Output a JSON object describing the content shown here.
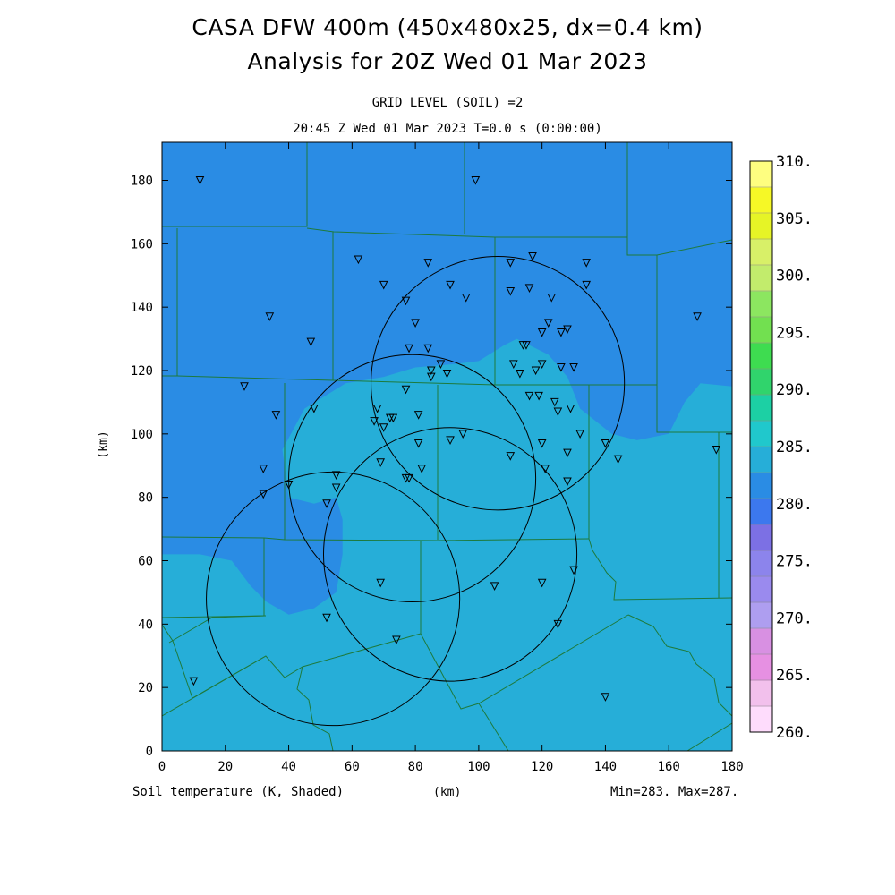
{
  "header": {
    "title_line1": "CASA DFW 400m (450x480x25, dx=0.4 km)",
    "title_line2": "Analysis for 20Z Wed 01 Mar 2023",
    "grid_level": "GRID LEVEL (SOIL) =2",
    "valid_time": "20:45 Z Wed 01 Mar 2023   T=0.0 s (0:00:00)"
  },
  "footer": {
    "field_label": "Soil temperature (K, Shaded)",
    "x_unit": "(km)",
    "min_max": "Min=283. Max=287."
  },
  "axes": {
    "xlabel": "(km)",
    "ylabel": "(km)",
    "x_ticks": [
      "0",
      "20",
      "40",
      "60",
      "80",
      "100",
      "120",
      "140",
      "160",
      "180"
    ],
    "y_ticks": [
      "0",
      "20",
      "40",
      "60",
      "80",
      "100",
      "120",
      "140",
      "160",
      "180"
    ]
  },
  "colorbar": {
    "labels": [
      "260.",
      "265.",
      "270.",
      "275.",
      "280.",
      "285.",
      "290.",
      "295.",
      "300.",
      "305.",
      "310."
    ],
    "colors": [
      "#fedcfc",
      "#f2c0ec",
      "#e690e2",
      "#d890e2",
      "#ae9ef0",
      "#9a8aee",
      "#8c84ec",
      "#7c70e4",
      "#3c78ee",
      "#2a8ce4",
      "#26aed8",
      "#20c8cc",
      "#1cd0a4",
      "#30d46c",
      "#3edc50",
      "#72e050",
      "#8ce660",
      "#c2ec6c",
      "#d8f068",
      "#e6f426",
      "#f6f826",
      "#fefe80"
    ]
  },
  "map": {
    "extent_km": {
      "x": [
        0,
        180
      ],
      "y": [
        0,
        192
      ]
    },
    "colors": {
      "cold": "#2a8ce4",
      "warm": "#26aed8",
      "county": "#1e7a3c"
    },
    "shaded_field_regions": [
      {
        "level": "285-287",
        "polygon_km": [
          [
            0,
            0
          ],
          [
            180,
            0
          ],
          [
            180,
            115
          ],
          [
            170,
            116
          ],
          [
            165,
            110
          ],
          [
            160,
            100
          ],
          [
            150,
            98
          ],
          [
            142,
            100
          ],
          [
            132,
            108
          ],
          [
            128,
            118
          ],
          [
            122,
            125
          ],
          [
            112,
            130
          ],
          [
            108,
            128
          ],
          [
            100,
            123
          ],
          [
            92,
            122
          ],
          [
            80,
            121
          ],
          [
            70,
            118
          ],
          [
            58,
            116
          ],
          [
            45,
            108
          ],
          [
            38,
            95
          ],
          [
            40,
            80
          ],
          [
            48,
            78
          ],
          [
            55,
            80
          ],
          [
            57,
            73
          ],
          [
            57,
            62
          ],
          [
            55,
            50
          ],
          [
            48,
            45
          ],
          [
            40,
            43
          ],
          [
            33,
            47
          ],
          [
            28,
            52
          ],
          [
            22,
            60
          ],
          [
            12,
            62
          ],
          [
            0,
            62
          ]
        ]
      }
    ],
    "radar_rings": [
      {
        "center_km": [
          106,
          116
        ],
        "radius_km": 40
      },
      {
        "center_km": [
          79,
          86
        ],
        "radius_km": 39
      },
      {
        "center_km": [
          91,
          62
        ],
        "radius_km": 40
      },
      {
        "center_km": [
          54,
          48
        ],
        "radius_km": 40
      }
    ],
    "stations_km": [
      [
        12,
        180
      ],
      [
        99,
        180
      ],
      [
        62,
        155
      ],
      [
        84,
        154
      ],
      [
        110,
        154
      ],
      [
        117,
        156
      ],
      [
        134,
        154
      ],
      [
        70,
        147
      ],
      [
        91,
        147
      ],
      [
        110,
        145
      ],
      [
        116,
        146
      ],
      [
        123,
        143
      ],
      [
        134,
        147
      ],
      [
        77,
        142
      ],
      [
        96,
        143
      ],
      [
        34,
        137
      ],
      [
        80,
        135
      ],
      [
        122,
        135
      ],
      [
        120,
        132
      ],
      [
        126,
        132
      ],
      [
        128,
        133
      ],
      [
        169,
        137
      ],
      [
        47,
        129
      ],
      [
        78,
        127
      ],
      [
        84,
        127
      ],
      [
        114,
        128
      ],
      [
        115,
        128
      ],
      [
        88,
        122
      ],
      [
        111,
        122
      ],
      [
        113,
        119
      ],
      [
        120,
        122
      ],
      [
        118,
        120
      ],
      [
        126,
        121
      ],
      [
        130,
        121
      ],
      [
        85,
        120
      ],
      [
        85,
        118
      ],
      [
        90,
        119
      ],
      [
        26,
        115
      ],
      [
        77,
        114
      ],
      [
        116,
        112
      ],
      [
        119,
        112
      ],
      [
        124,
        110
      ],
      [
        129,
        108
      ],
      [
        125,
        107
      ],
      [
        36,
        106
      ],
      [
        48,
        108
      ],
      [
        68,
        108
      ],
      [
        67,
        104
      ],
      [
        72,
        105
      ],
      [
        73,
        105
      ],
      [
        70,
        102
      ],
      [
        81,
        106
      ],
      [
        132,
        100
      ],
      [
        91,
        98
      ],
      [
        95,
        100
      ],
      [
        81,
        97
      ],
      [
        120,
        97
      ],
      [
        140,
        97
      ],
      [
        144,
        92
      ],
      [
        175,
        95
      ],
      [
        69,
        91
      ],
      [
        82,
        89
      ],
      [
        110,
        93
      ],
      [
        121,
        89
      ],
      [
        128,
        94
      ],
      [
        128,
        85
      ],
      [
        32,
        89
      ],
      [
        55,
        87
      ],
      [
        77,
        86
      ],
      [
        78,
        86
      ],
      [
        40,
        84
      ],
      [
        55,
        83
      ],
      [
        32,
        81
      ],
      [
        52,
        78
      ],
      [
        130,
        57
      ],
      [
        69,
        53
      ],
      [
        120,
        53
      ],
      [
        105,
        52
      ],
      [
        52,
        42
      ],
      [
        125,
        40
      ],
      [
        74,
        35
      ],
      [
        10,
        22
      ],
      [
        140,
        17
      ]
    ]
  }
}
